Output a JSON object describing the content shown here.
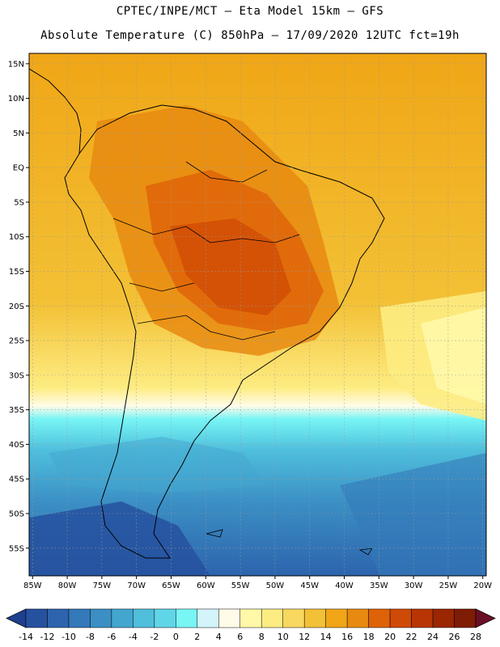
{
  "title": {
    "line1": "CPTEC/INPE/MCT –  Eta Model 15km – GFS",
    "line2": "Absolute Temperature (C) 850hPa – 17/09/2020 12UTC fct=19h"
  },
  "map": {
    "lat_ticks": [
      {
        "lat": 15,
        "label": "15N"
      },
      {
        "lat": 10,
        "label": "10N"
      },
      {
        "lat": 5,
        "label": "5N"
      },
      {
        "lat": 0,
        "label": "EQ"
      },
      {
        "lat": -5,
        "label": "5S"
      },
      {
        "lat": -10,
        "label": "10S"
      },
      {
        "lat": -15,
        "label": "15S"
      },
      {
        "lat": -20,
        "label": "20S"
      },
      {
        "lat": -25,
        "label": "25S"
      },
      {
        "lat": -30,
        "label": "30S"
      },
      {
        "lat": -35,
        "label": "35S"
      },
      {
        "lat": -40,
        "label": "40S"
      },
      {
        "lat": -45,
        "label": "45S"
      },
      {
        "lat": -50,
        "label": "50S"
      },
      {
        "lat": -55,
        "label": "55S"
      }
    ],
    "lon_ticks": [
      {
        "lon": -85,
        "label": "85W"
      },
      {
        "lon": -80,
        "label": "80W"
      },
      {
        "lon": -75,
        "label": "75W"
      },
      {
        "lon": -70,
        "label": "70W"
      },
      {
        "lon": -65,
        "label": "65W"
      },
      {
        "lon": -60,
        "label": "60W"
      },
      {
        "lon": -55,
        "label": "55W"
      },
      {
        "lon": -50,
        "label": "50W"
      },
      {
        "lon": -45,
        "label": "45W"
      },
      {
        "lon": -40,
        "label": "40W"
      },
      {
        "lon": -35,
        "label": "35W"
      },
      {
        "lon": -30,
        "label": "30W"
      },
      {
        "lon": -25,
        "label": "25W"
      },
      {
        "lon": -20,
        "label": "20W"
      }
    ]
  },
  "colorbar": {
    "colors": [
      "#1f3f8f",
      "#26519f",
      "#2d64ad",
      "#3479b9",
      "#3b8fc4",
      "#43a6cf",
      "#4fbfdc",
      "#5fd6e8",
      "#78f5f5",
      "#d2f4fa",
      "#fffbe8",
      "#fff8a8",
      "#fdec82",
      "#f9d860",
      "#f3c136",
      "#f0a616",
      "#e88a10",
      "#de6208",
      "#cf4a06",
      "#b93504",
      "#9a2602",
      "#7f1c06",
      "#6a0f25"
    ],
    "labels": [
      "-14",
      "-12",
      "-10",
      "-8",
      "-6",
      "-4",
      "-2",
      "0",
      "2",
      "4",
      "6",
      "8",
      "10",
      "12",
      "14",
      "16",
      "18",
      "20",
      "22",
      "24",
      "26",
      "28"
    ]
  }
}
